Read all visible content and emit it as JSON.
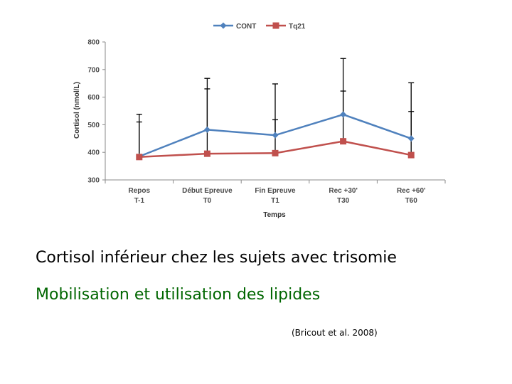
{
  "chart_data": {
    "type": "line",
    "categories": [
      [
        "Repos",
        "T-1"
      ],
      [
        "Début Epreuve",
        "T0"
      ],
      [
        "Fin Epreuve",
        "T1"
      ],
      [
        "Rec +30'",
        "T30"
      ],
      [
        "Rec +60'",
        "T60"
      ]
    ],
    "series": [
      {
        "name": "CONT",
        "color": "#4F81BD",
        "marker": "diamond",
        "values": [
          385,
          482,
          462,
          537,
          450
        ],
        "error_upper": [
          510,
          668,
          518,
          622,
          548
        ]
      },
      {
        "name": "Tq21",
        "color": "#C0504D",
        "marker": "square",
        "values": [
          383,
          395,
          397,
          440,
          390
        ],
        "error_upper": [
          538,
          630,
          648,
          740,
          652
        ]
      }
    ],
    "xlabel": "Temps",
    "ylabel": "Cortisol (nmol/L)",
    "ylim": [
      300,
      800
    ],
    "yticks": [
      300,
      400,
      500,
      600,
      700,
      800
    ],
    "grid": false,
    "legend": "top"
  },
  "text": {
    "line1": "Cortisol inférieur chez les sujets avec trisomie",
    "line2": "Mobilisation et utilisation des lipides",
    "citation": "(Bricout et al. 2008)"
  }
}
